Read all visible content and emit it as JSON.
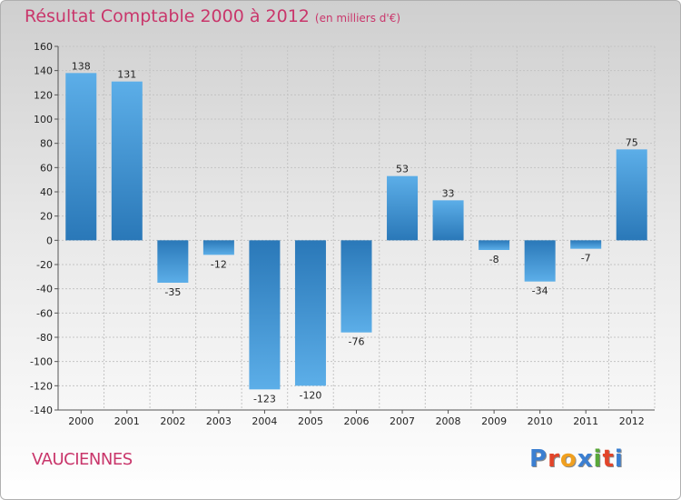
{
  "title": "Résultat Comptable 2000 à 2012",
  "subtitle": "(en milliers d'€)",
  "place": "VAUCIENNES",
  "brand": {
    "letters": [
      "P",
      "r",
      "o",
      "x",
      "i",
      "t",
      "i"
    ],
    "colors": [
      "#3b7fd1",
      "#e2452a",
      "#f0a020",
      "#3b7fd1",
      "#59a83a",
      "#e2452a",
      "#3b7fd1"
    ]
  },
  "chart_data": {
    "type": "bar",
    "title": "Résultat Comptable 2000 à 2012",
    "subtitle": "(en milliers d'€)",
    "xlabel": "",
    "ylabel": "",
    "categories": [
      "2000",
      "2001",
      "2002",
      "2003",
      "2004",
      "2005",
      "2006",
      "2007",
      "2008",
      "2009",
      "2010",
      "2011",
      "2012"
    ],
    "values": [
      138,
      131,
      -35,
      -12,
      -123,
      -120,
      -76,
      53,
      33,
      -8,
      -34,
      -7,
      75
    ],
    "data_labels": [
      "138",
      "131",
      "-35",
      "-12",
      "-123",
      "-120",
      "-76",
      "53",
      "33",
      "-8",
      "-34",
      "-7",
      "75"
    ],
    "ylim": [
      -140,
      160
    ],
    "yticks": [
      160,
      140,
      120,
      100,
      80,
      60,
      40,
      20,
      0,
      -20,
      -40,
      -60,
      -80,
      -100,
      -120,
      -140
    ],
    "grid": true,
    "bar_color": "#3d94d6"
  }
}
